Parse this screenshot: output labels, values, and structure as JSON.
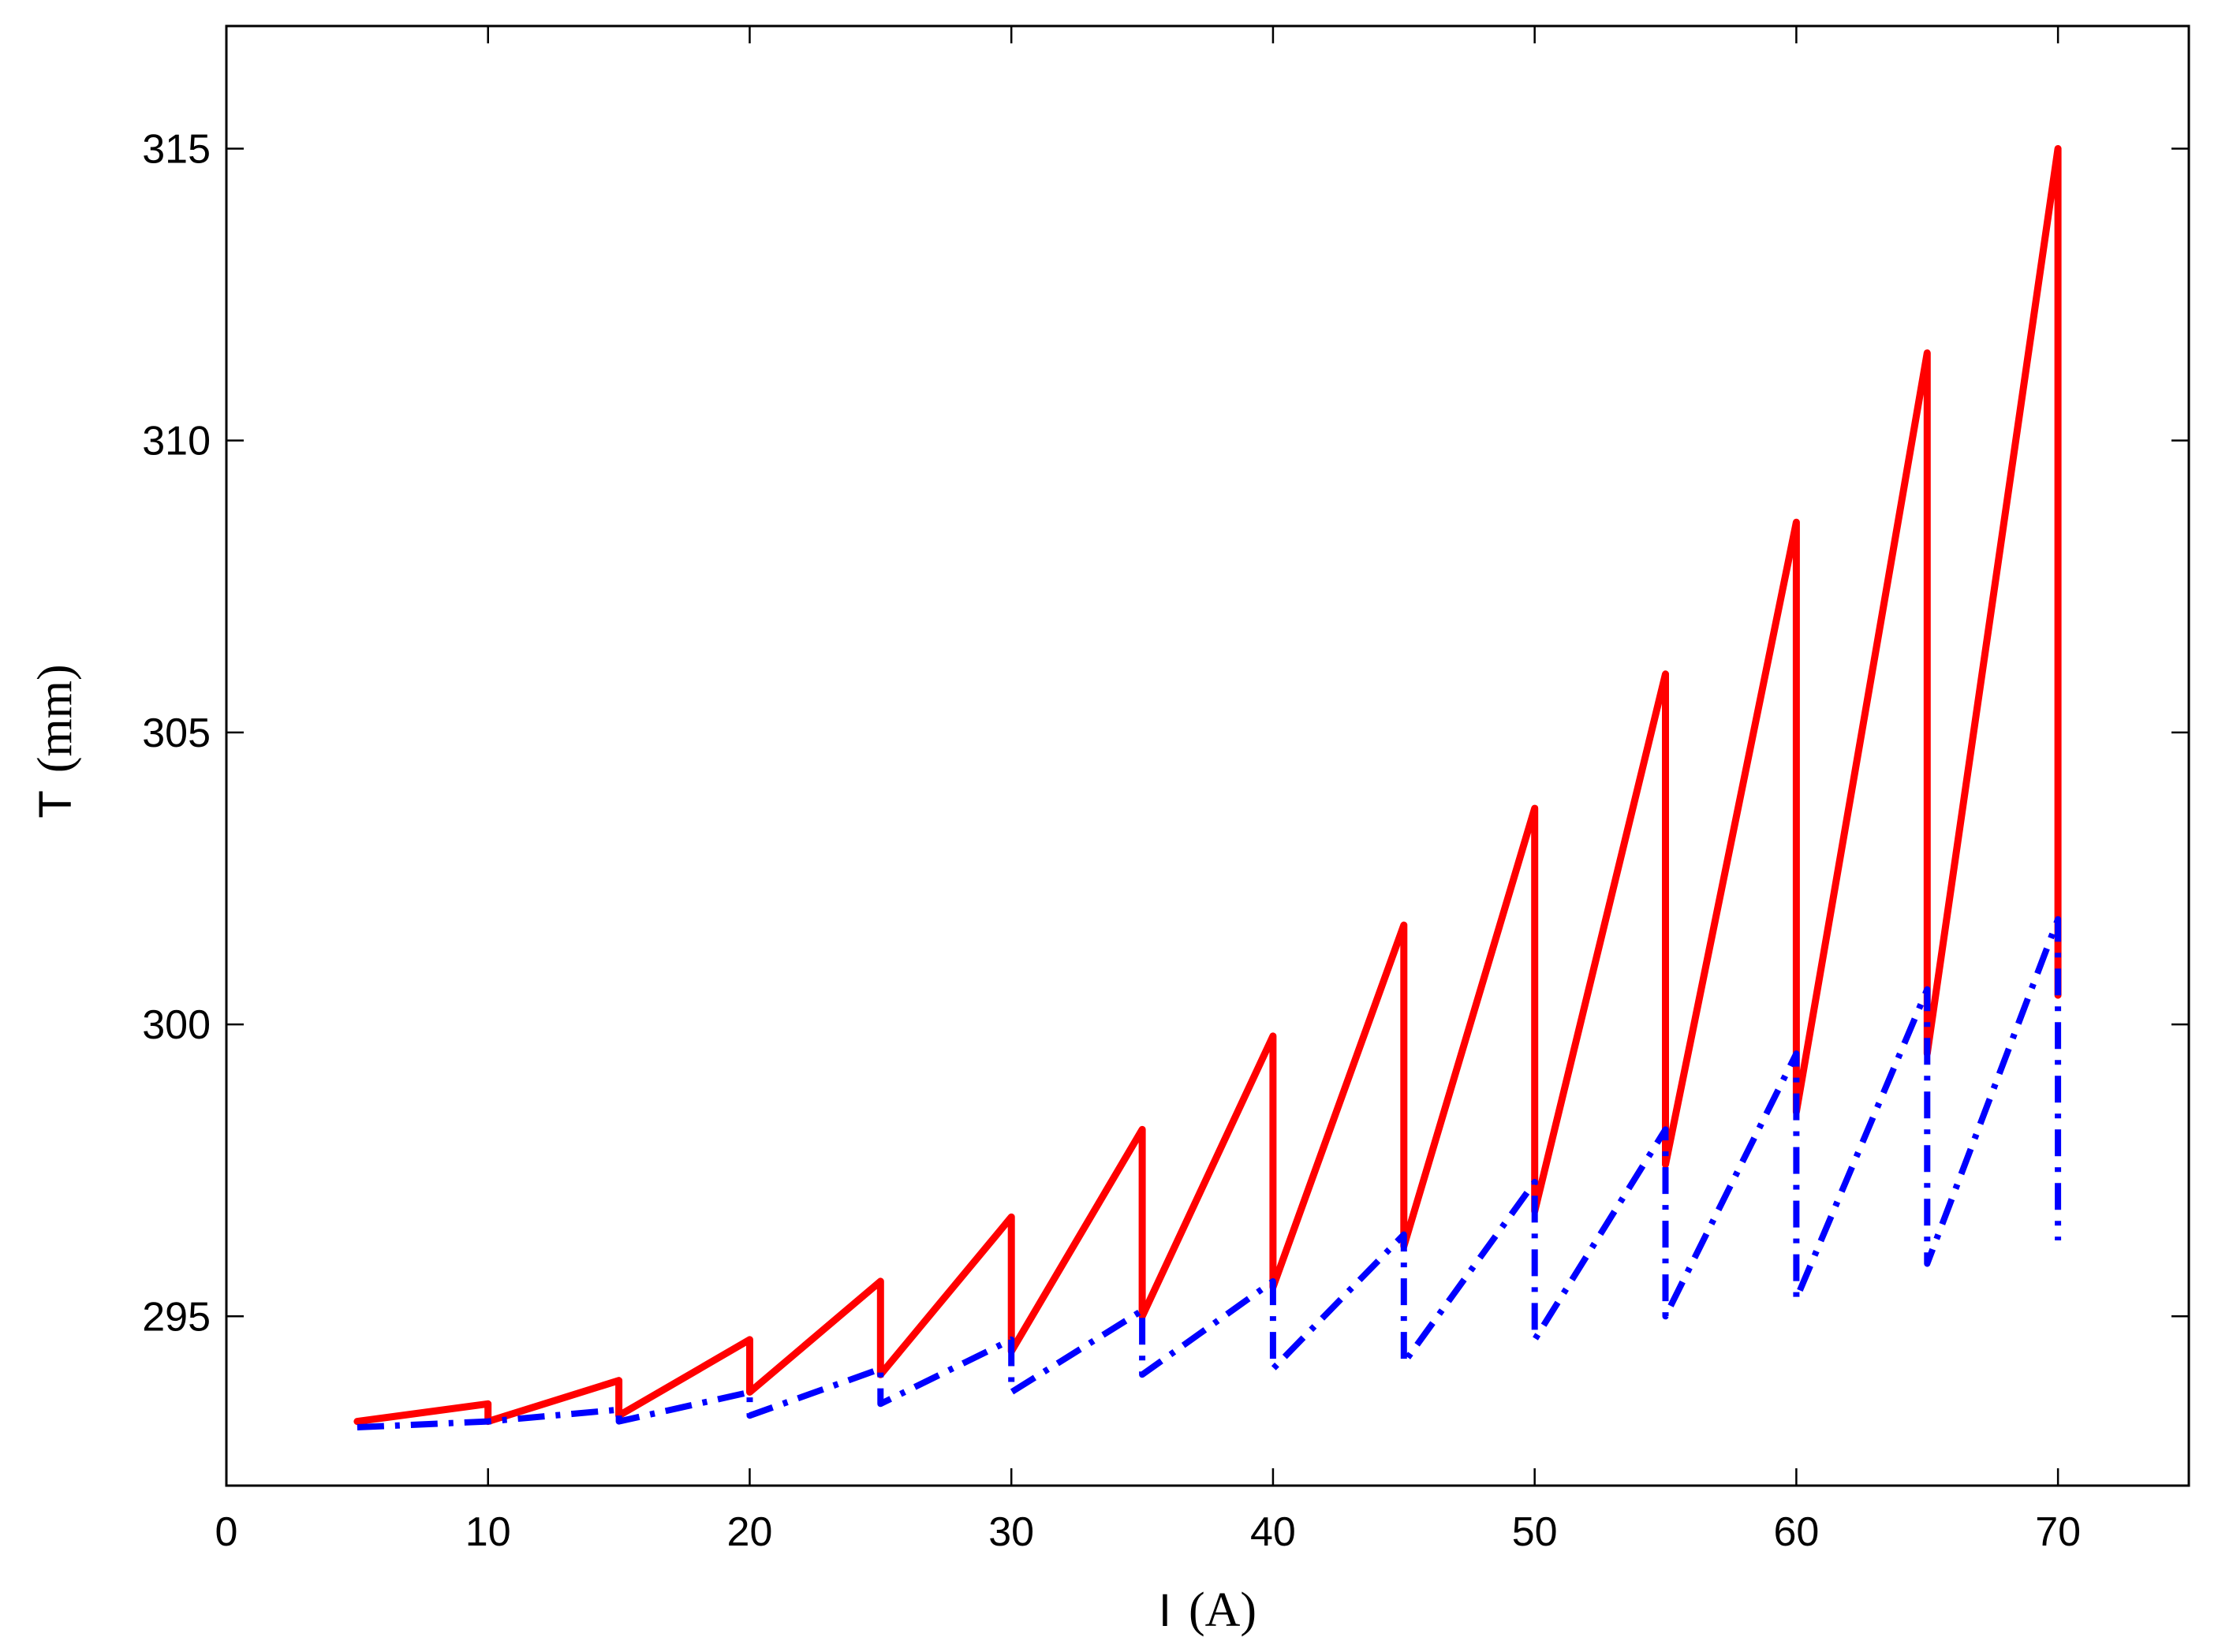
{
  "chart_data": {
    "type": "line",
    "title": "",
    "xlabel": {
      "var": "I",
      "unit": "(A)"
    },
    "ylabel": {
      "var": "T",
      "unit": "(mm)"
    },
    "xlim": [
      0,
      75
    ],
    "ylim": [
      292.1,
      317.1
    ],
    "xticks": [
      0,
      10,
      20,
      30,
      40,
      50,
      60,
      70
    ],
    "yticks": [
      295,
      300,
      305,
      310,
      315
    ],
    "grid": false,
    "legend": "none",
    "series": [
      {
        "color": "#ff0000",
        "style": "solid",
        "x": [
          5,
          10,
          10,
          15,
          15,
          20,
          20,
          25,
          25,
          30,
          30,
          35,
          35,
          40,
          40,
          45,
          45,
          50,
          50,
          55,
          55,
          60,
          60,
          65,
          65,
          70,
          70
        ],
        "y": [
          293.2,
          293.5,
          293.2,
          293.9,
          293.3,
          294.6,
          293.7,
          295.6,
          294.0,
          296.7,
          294.4,
          298.2,
          295.0,
          299.8,
          295.5,
          301.7,
          296.2,
          303.7,
          296.8,
          306.0,
          297.6,
          308.6,
          298.5,
          311.5,
          299.5,
          315.0,
          300.5
        ]
      },
      {
        "color": "#0000ff",
        "style": "dashdot",
        "x": [
          5,
          10,
          10,
          15,
          15,
          20,
          20,
          25,
          25,
          30,
          30,
          35,
          35,
          40,
          40,
          45,
          45,
          50,
          50,
          55,
          55,
          60,
          60,
          65,
          65,
          70,
          70
        ],
        "y": [
          293.1,
          293.2,
          293.2,
          293.4,
          293.2,
          293.7,
          293.3,
          294.1,
          293.5,
          294.6,
          293.7,
          295.1,
          294.0,
          295.6,
          294.1,
          296.4,
          294.2,
          297.3,
          294.6,
          298.2,
          295.0,
          299.5,
          295.3,
          300.6,
          295.9,
          301.8,
          296.3
        ]
      }
    ]
  }
}
